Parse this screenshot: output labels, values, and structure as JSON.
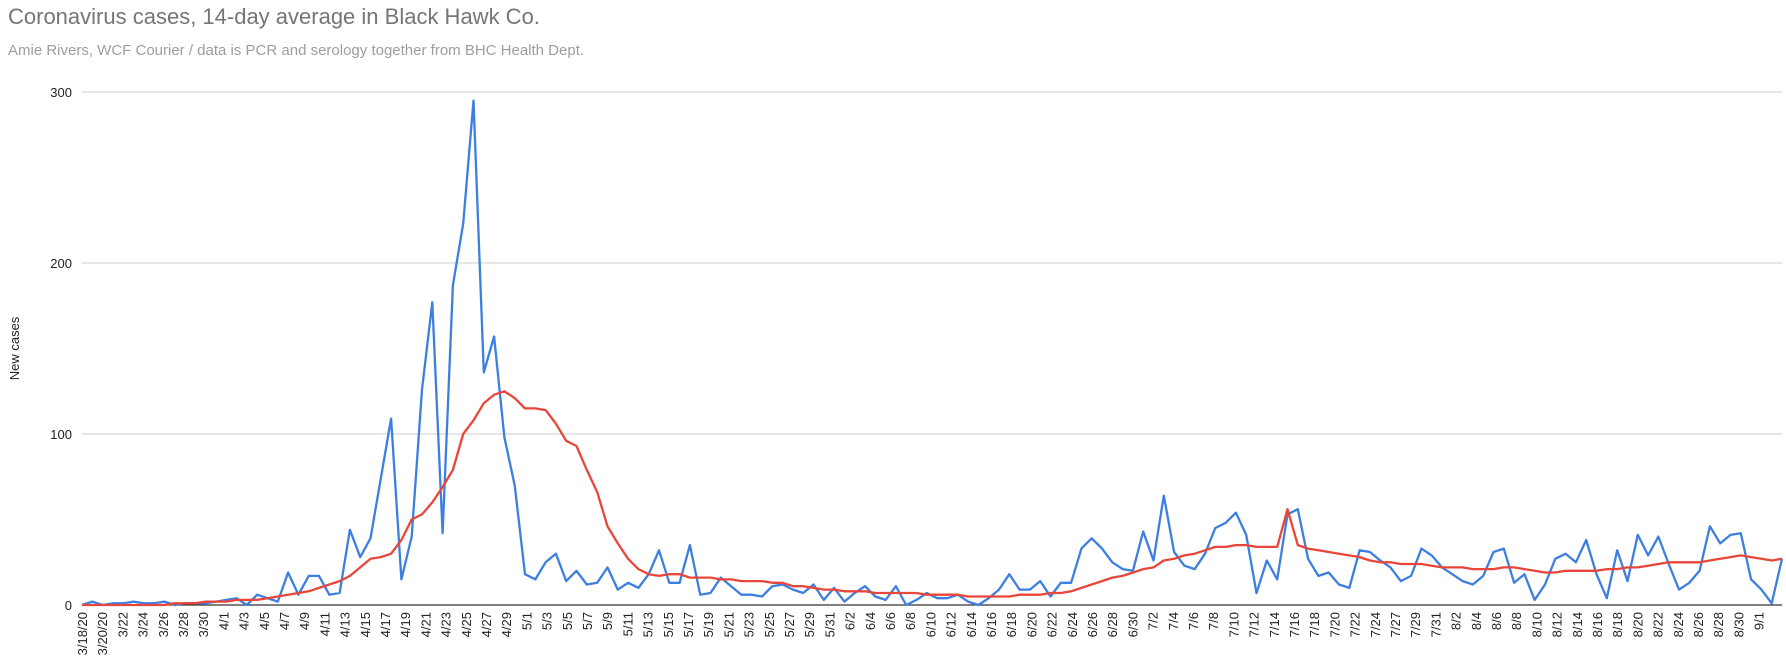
{
  "chart_data": {
    "type": "line",
    "title": "Coronavirus cases, 14-day average in Black Hawk Co.",
    "subtitle": "Amie Rivers, WCF Courier / data is PCR and serology together from BHC Health Dept.",
    "xlabel": "",
    "ylabel": "New cases",
    "ylim": [
      0,
      300
    ],
    "yticks": [
      0,
      100,
      200,
      300
    ],
    "grid": true,
    "legend": "none",
    "x_tick_labels": [
      "3/18/20",
      "3/20/20",
      "3/22",
      "3/24",
      "3/26",
      "3/28",
      "3/30",
      "4/1",
      "4/3",
      "4/5",
      "4/7",
      "4/9",
      "4/11",
      "4/13",
      "4/15",
      "4/17",
      "4/19",
      "4/21",
      "4/23",
      "4/25",
      "4/27",
      "4/29",
      "5/1",
      "5/3",
      "5/5",
      "5/7",
      "5/9",
      "5/11",
      "5/13",
      "5/15",
      "5/17",
      "5/19",
      "5/21",
      "5/23",
      "5/25",
      "5/27",
      "5/29",
      "5/31",
      "6/2",
      "6/4",
      "6/6",
      "6/8",
      "6/10",
      "6/12",
      "6/14",
      "6/16",
      "6/18",
      "6/20",
      "6/22",
      "6/24",
      "6/26",
      "6/28",
      "6/30",
      "7/2",
      "7/4",
      "7/6",
      "7/8",
      "7/10",
      "7/12",
      "7/14",
      "7/16",
      "7/18",
      "7/20",
      "7/22",
      "7/24",
      "7/27",
      "7/29",
      "7/31",
      "8/2",
      "8/4",
      "8/6",
      "8/8",
      "8/10",
      "8/12",
      "8/14",
      "8/16",
      "8/18",
      "8/20",
      "8/22",
      "8/24",
      "8/26",
      "8/28",
      "8/30",
      "9/1"
    ],
    "series": [
      {
        "color": "#3d7fe0",
        "values": [
          0,
          2,
          0,
          1,
          1,
          2,
          1,
          1,
          2,
          0,
          1,
          1,
          1,
          2,
          3,
          4,
          0,
          6,
          4,
          2,
          19,
          6,
          17,
          17,
          6,
          7,
          44,
          28,
          39,
          74,
          109,
          15,
          40,
          126,
          177,
          42,
          187,
          223,
          295,
          136,
          157,
          98,
          70,
          18,
          15,
          25,
          30,
          14,
          20,
          12,
          13,
          22,
          9,
          13,
          10,
          18,
          32,
          13,
          13,
          35,
          6,
          7,
          16,
          11,
          6,
          6,
          5,
          11,
          12,
          9,
          7,
          12,
          3,
          10,
          2,
          7,
          11,
          5,
          3,
          11,
          0,
          3,
          7,
          4,
          4,
          6,
          2,
          0,
          4,
          9,
          18,
          9,
          9,
          14,
          5,
          13,
          13,
          33,
          39,
          33,
          25,
          21,
          20,
          43,
          26,
          64,
          31,
          23,
          21,
          30,
          45,
          48,
          54,
          41,
          7,
          26,
          15,
          53,
          56,
          27,
          17,
          19,
          12,
          10,
          32,
          31,
          26,
          22,
          14,
          17,
          33,
          29,
          22,
          18,
          14,
          12,
          17,
          31,
          33,
          13,
          18,
          3,
          12,
          27,
          30,
          25,
          38,
          18,
          4,
          32,
          14,
          41,
          29,
          40,
          24,
          9,
          13,
          20,
          46,
          36,
          41,
          42,
          15,
          9,
          1,
          27
        ]
      },
      {
        "color": "#e8463a",
        "values": [
          0,
          0,
          0,
          0,
          0,
          0,
          0,
          0,
          0,
          1,
          1,
          1,
          2,
          2,
          2,
          3,
          3,
          3,
          4,
          5,
          6,
          7,
          8,
          10,
          12,
          14,
          17,
          22,
          27,
          28,
          30,
          38,
          50,
          53,
          60,
          69,
          79,
          100,
          108,
          118,
          123,
          125,
          121,
          115,
          115,
          114,
          106,
          96,
          93,
          79,
          66,
          46,
          36,
          27,
          21,
          18,
          17,
          18,
          18,
          16,
          16,
          16,
          15,
          15,
          14,
          14,
          14,
          13,
          13,
          11,
          11,
          10,
          9,
          9,
          8,
          8,
          8,
          7,
          7,
          7,
          7,
          7,
          6,
          6,
          6,
          6,
          5,
          5,
          5,
          5,
          5,
          6,
          6,
          6,
          7,
          7,
          8,
          10,
          12,
          14,
          16,
          17,
          19,
          21,
          22,
          26,
          27,
          29,
          30,
          32,
          34,
          34,
          35,
          35,
          34,
          34,
          34,
          56,
          35,
          33,
          32,
          31,
          30,
          29,
          28,
          26,
          25,
          25,
          24,
          24,
          24,
          23,
          22,
          22,
          22,
          21,
          21,
          21,
          22,
          22,
          21,
          20,
          19,
          19,
          20,
          20,
          20,
          20,
          21,
          21,
          22,
          22,
          23,
          24,
          25,
          25,
          25,
          25,
          26,
          27,
          28,
          29,
          28,
          27,
          26,
          27
        ]
      }
    ]
  }
}
